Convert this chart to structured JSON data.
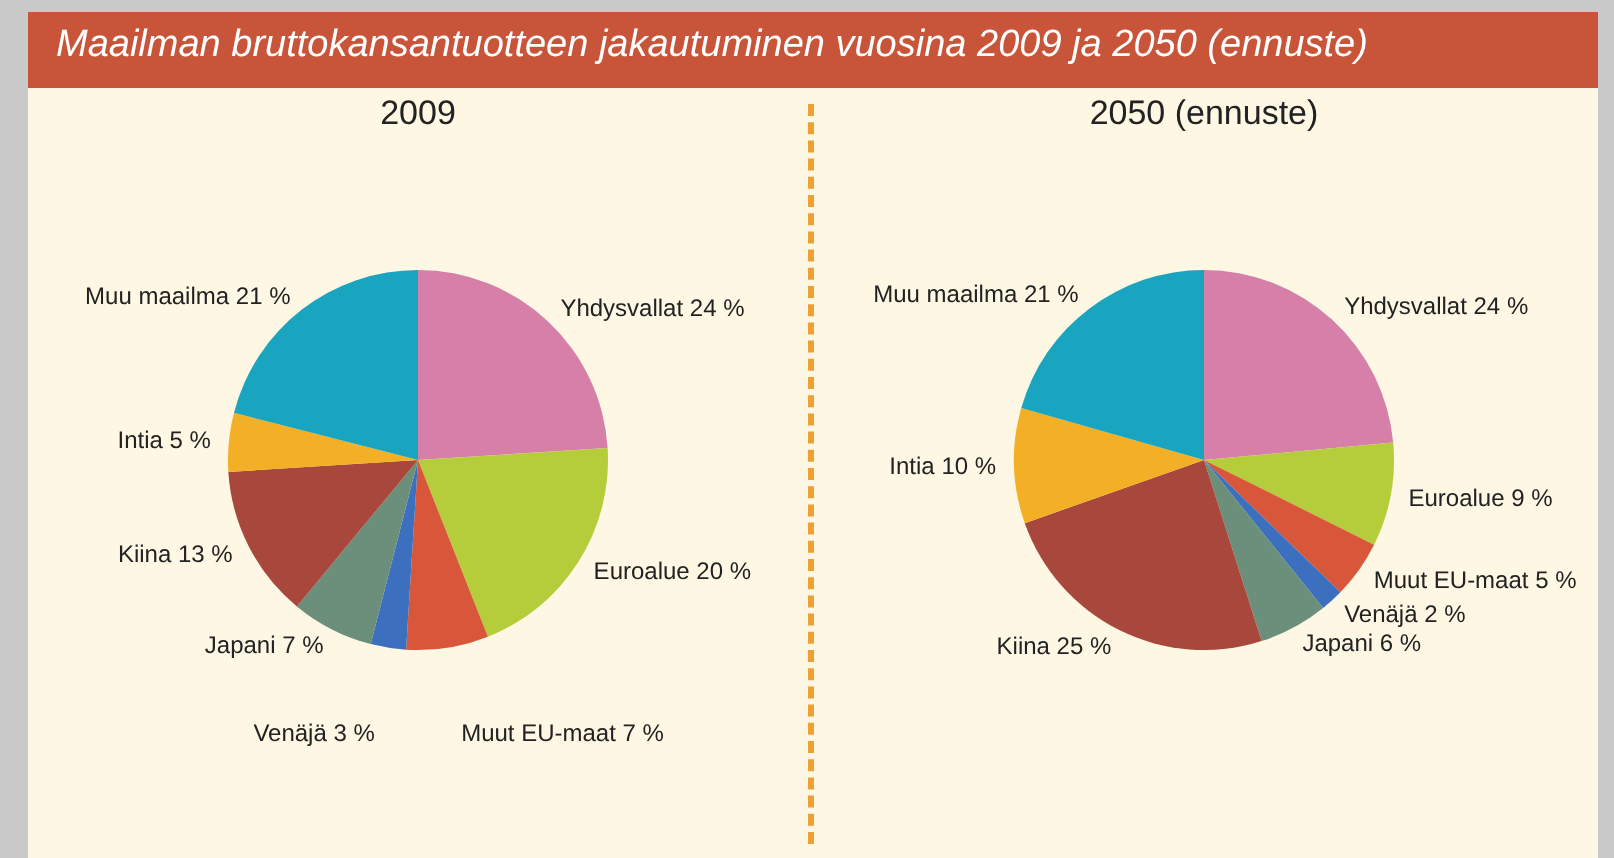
{
  "chart_data": [
    {
      "type": "pie",
      "title": "Maailman bruttokansantuotteen jakautuminen vuosina 2009 ja 2050 (ennuste)",
      "subtitle": "2009",
      "categories": [
        "Yhdysvallat",
        "Euroalue",
        "Muut EU-maat",
        "Venäjä",
        "Japani",
        "Kiina",
        "Intia",
        "Muu maailma"
      ],
      "values": [
        24,
        20,
        7,
        3,
        7,
        13,
        5,
        21
      ],
      "value_labels": [
        "24 %",
        "20 %",
        "7 %",
        "3 %",
        "7 %",
        "13 %",
        "5 %",
        "21 %"
      ],
      "colors": [
        "#d57fa9",
        "#b6cd3b",
        "#d8573a",
        "#3c6fbe",
        "#6b8f7b",
        "#a8473b",
        "#f3b026",
        "#19a4bf"
      ]
    },
    {
      "type": "pie",
      "title": "2050 (ennuste)",
      "categories": [
        "Yhdysvallat",
        "Euroalue",
        "Muut EU-maat",
        "Venäjä",
        "Japani",
        "Kiina",
        "Intia",
        "Muu maailma"
      ],
      "values": [
        24,
        9,
        5,
        2,
        6,
        25,
        10,
        21
      ],
      "value_labels": [
        "24 %",
        "9 %",
        "5 %",
        "2 %",
        "6 %",
        "25 %",
        "10 %",
        "21 %"
      ],
      "colors": [
        "#d57fa9",
        "#b6cd3b",
        "#d8573a",
        "#3c6fbe",
        "#6b8f7b",
        "#a8473b",
        "#f3b026",
        "#19a4bf"
      ]
    }
  ]
}
